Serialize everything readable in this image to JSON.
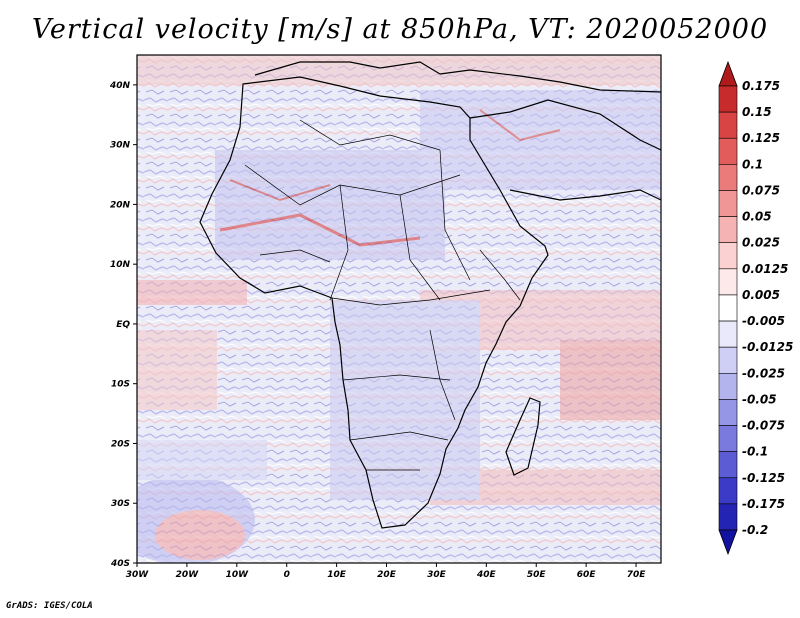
{
  "title": "Vertical velocity [m/s] at 850hPa, VT: 2020052000",
  "credit": "GrADS: IGES/COLA",
  "map": {
    "variable": "Vertical velocity",
    "units": "m/s",
    "level": "850hPa",
    "valid_time": "2020052000",
    "region": "Africa",
    "lon_range": [
      -30,
      75
    ],
    "lat_range": [
      -40,
      45
    ],
    "lat_ticks": [
      {
        "value": 40,
        "label": "40N"
      },
      {
        "value": 30,
        "label": "30N"
      },
      {
        "value": 20,
        "label": "20N"
      },
      {
        "value": 10,
        "label": "10N"
      },
      {
        "value": 0,
        "label": "EQ"
      },
      {
        "value": -10,
        "label": "10S"
      },
      {
        "value": -20,
        "label": "20S"
      },
      {
        "value": -30,
        "label": "30S"
      },
      {
        "value": -40,
        "label": "40S"
      }
    ],
    "lon_ticks": [
      {
        "value": -30,
        "label": "30W"
      },
      {
        "value": -20,
        "label": "20W"
      },
      {
        "value": -10,
        "label": "10W"
      },
      {
        "value": 0,
        "label": "0"
      },
      {
        "value": 10,
        "label": "10E"
      },
      {
        "value": 20,
        "label": "20E"
      },
      {
        "value": 30,
        "label": "30E"
      },
      {
        "value": 40,
        "label": "40E"
      },
      {
        "value": 50,
        "label": "50E"
      },
      {
        "value": 60,
        "label": "60E"
      },
      {
        "value": 70,
        "label": "70E"
      }
    ]
  },
  "colorbar": {
    "labels": [
      "0.175",
      "0.15",
      "0.125",
      "0.1",
      "0.075",
      "0.05",
      "0.025",
      "0.0125",
      "0.005",
      "-0.005",
      "-0.0125",
      "-0.025",
      "-0.05",
      "-0.075",
      "-0.1",
      "-0.125",
      "-0.175",
      "-0.2"
    ],
    "colors": [
      "#b01a1a",
      "#c82b2b",
      "#d84444",
      "#e35c5c",
      "#eb7a7a",
      "#f19696",
      "#f6b3b3",
      "#fbd1d1",
      "#fde9e9",
      "#ffffff",
      "#e9e9fb",
      "#cfcff5",
      "#b3b3ee",
      "#9696e6",
      "#7a7ade",
      "#5c5cd4",
      "#3b3bc8",
      "#2424b4",
      "#1212a0"
    ]
  }
}
